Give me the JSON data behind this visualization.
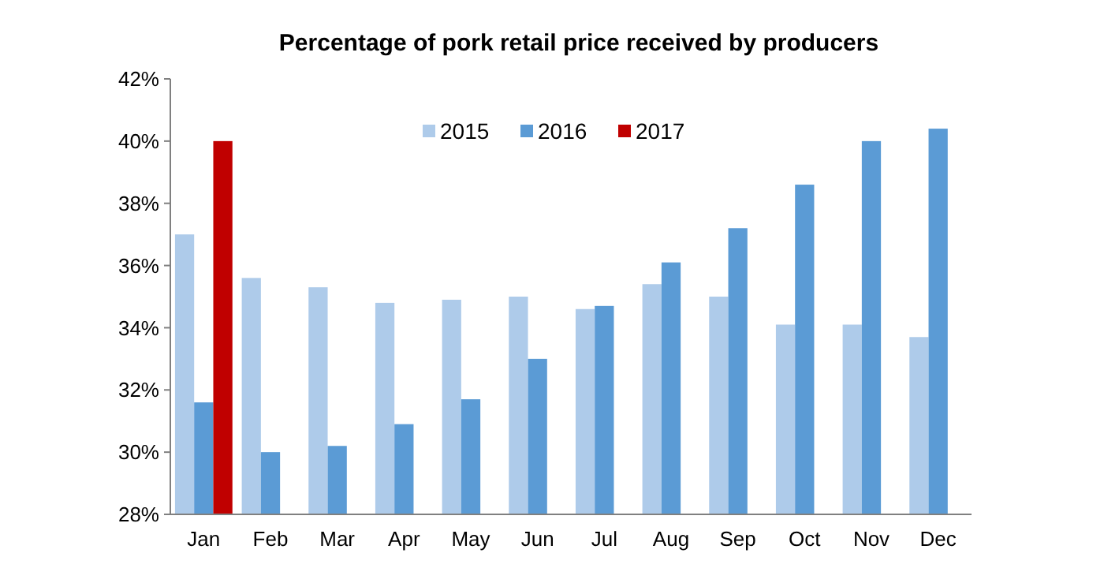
{
  "chart_data": {
    "type": "bar",
    "title": "Percentage of pork retail price received by producers",
    "categories": [
      "Jan",
      "Feb",
      "Mar",
      "Apr",
      "May",
      "Jun",
      "Jul",
      "Aug",
      "Sep",
      "Oct",
      "Nov",
      "Dec"
    ],
    "series": [
      {
        "name": "2015",
        "color": "#aecbea",
        "values": [
          37.0,
          35.6,
          35.3,
          34.8,
          34.9,
          35.0,
          34.6,
          35.4,
          35.0,
          34.1,
          34.1,
          33.7
        ]
      },
      {
        "name": "2016",
        "color": "#5b9bd5",
        "values": [
          31.6,
          30.0,
          30.2,
          30.9,
          31.7,
          33.0,
          34.7,
          36.1,
          37.2,
          38.6,
          40.0,
          40.4
        ]
      },
      {
        "name": "2017",
        "color": "#c00000",
        "values": [
          40.0,
          null,
          null,
          null,
          null,
          null,
          null,
          null,
          null,
          null,
          null,
          null
        ]
      }
    ],
    "ylim": [
      28,
      42
    ],
    "yticks": [
      {
        "value": 28,
        "label": "28%"
      },
      {
        "value": 30,
        "label": "30%"
      },
      {
        "value": 32,
        "label": "32%"
      },
      {
        "value": 34,
        "label": "34%"
      },
      {
        "value": 36,
        "label": "36%"
      },
      {
        "value": 38,
        "label": "38%"
      },
      {
        "value": 40,
        "label": "40%"
      },
      {
        "value": 42,
        "label": "42%"
      }
    ],
    "legend": "top",
    "grid": false
  }
}
